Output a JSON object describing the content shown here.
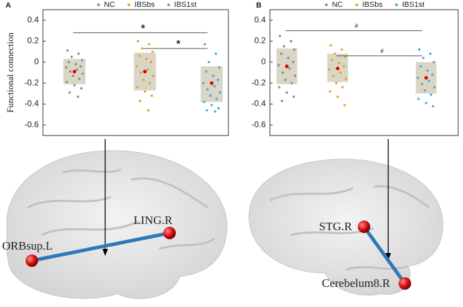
{
  "chart_data": [
    {
      "type": "box",
      "panel": "A",
      "y_label": "Functional connection",
      "ylim": [
        -0.7,
        0.5
      ],
      "yticks": [
        -0.6,
        -0.4,
        -0.2,
        0,
        0.2,
        0.4
      ],
      "series": [
        {
          "name": "NC",
          "color": "#8c8c8c",
          "box": [
            -0.21,
            0.03
          ],
          "mean": -0.09,
          "values": [
            0.11,
            0.08,
            0.05,
            0.02,
            0.0,
            -0.02,
            -0.04,
            -0.05,
            -0.07,
            -0.09,
            -0.11,
            -0.13,
            -0.16,
            -0.19,
            -0.22,
            -0.25,
            -0.29,
            -0.33
          ]
        },
        {
          "name": "IBSbs",
          "color": "#e8a020",
          "box": [
            -0.27,
            0.09
          ],
          "mean": -0.09,
          "values": [
            0.2,
            0.17,
            0.13,
            0.1,
            0.06,
            0.03,
            0.0,
            -0.04,
            -0.07,
            -0.1,
            -0.13,
            -0.17,
            -0.2,
            -0.24,
            -0.28,
            -0.32,
            -0.37,
            -0.46
          ]
        },
        {
          "name": "IBS1st",
          "color": "#4aa8e0",
          "box": [
            -0.38,
            -0.04
          ],
          "mean": -0.2,
          "values": [
            0.17,
            0.08,
            0.0,
            -0.05,
            -0.09,
            -0.13,
            -0.17,
            -0.2,
            -0.23,
            -0.26,
            -0.29,
            -0.32,
            -0.35,
            -0.38,
            -0.41,
            -0.44,
            -0.46,
            -0.47
          ]
        }
      ],
      "significance": [
        {
          "from": 0,
          "to": 2,
          "y": 0.28,
          "label": "*"
        },
        {
          "from": 1,
          "to": 2,
          "y": 0.13,
          "label": "*"
        }
      ]
    },
    {
      "type": "box",
      "panel": "B",
      "ylim": [
        -0.7,
        0.5
      ],
      "yticks": [
        -0.6,
        -0.4,
        -0.2,
        0,
        0.2,
        0.4
      ],
      "series": [
        {
          "name": "NC",
          "color": "#8c8c8c",
          "box": [
            -0.21,
            0.13
          ],
          "mean": -0.04,
          "values": [
            0.25,
            0.2,
            0.15,
            0.12,
            0.08,
            0.04,
            0.0,
            -0.03,
            -0.06,
            -0.1,
            -0.13,
            -0.17,
            -0.2,
            -0.24,
            -0.29,
            -0.33,
            -0.37
          ]
        },
        {
          "name": "IBSbs",
          "color": "#e8a020",
          "box": [
            -0.19,
            0.08
          ],
          "mean": -0.06,
          "values": [
            0.16,
            0.12,
            0.08,
            0.05,
            0.02,
            -0.01,
            -0.04,
            -0.07,
            -0.1,
            -0.13,
            -0.16,
            -0.2,
            -0.24,
            -0.28,
            -0.33,
            -0.41
          ]
        },
        {
          "name": "IBS1st",
          "color": "#4aa8e0",
          "box": [
            -0.3,
            0.0
          ],
          "mean": -0.15,
          "values": [
            0.12,
            0.08,
            0.04,
            0.0,
            -0.04,
            -0.08,
            -0.12,
            -0.15,
            -0.18,
            -0.21,
            -0.24,
            -0.27,
            -0.31,
            -0.35,
            -0.39,
            -0.42
          ]
        }
      ],
      "significance": [
        {
          "from": 0,
          "to": 2,
          "y": 0.3,
          "label": "#"
        },
        {
          "from": 1,
          "to": 2,
          "y": 0.06,
          "label": "#"
        }
      ]
    }
  ],
  "brain": [
    {
      "nodes": [
        "ORBsup.L",
        "LING.R"
      ]
    },
    {
      "nodes": [
        "STG.R",
        "Cerebelum8.R"
      ]
    }
  ]
}
